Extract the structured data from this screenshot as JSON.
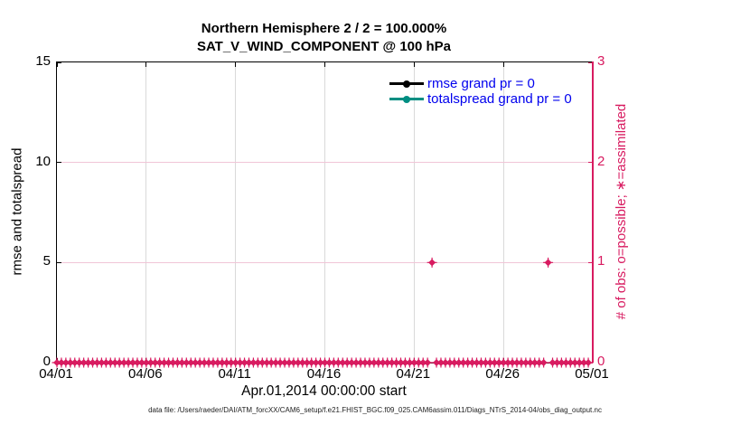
{
  "figure": {
    "background": "#ffffff",
    "caption": "data file: /Users/raeder/DAI/ATM_forcXX/CAM6_setup/f.e21.FHIST_BGC.f09_025.CAM6assim.011/Diags_NTrS_2014-04/obs_diag_output.nc"
  },
  "legend": {
    "text_color": "#0000ee",
    "items": [
      {
        "label": "rmse grand pr = 0",
        "color": "#000000"
      },
      {
        "label": "totalspread grand pr = 0",
        "color": "#008e82"
      }
    ]
  },
  "chart_data": {
    "type": "scatter",
    "title_line1": "Northern Hemisphere 2 / 2 = 100.000%",
    "title_line2": "SAT_V_WIND_COMPONENT @ 100 hPa",
    "x_axis": {
      "label": "Apr.01,2014 00:00:00 start",
      "tick_labels": [
        "04/01",
        "04/06",
        "04/11",
        "04/16",
        "04/21",
        "04/26",
        "05/01"
      ],
      "range_days": [
        0,
        30
      ],
      "color": "#000000"
    },
    "left_axis": {
      "label": "rmse and totalspread",
      "ticks": [
        0,
        5,
        10,
        15
      ],
      "range": [
        0,
        15
      ],
      "color": "#000000"
    },
    "right_axis": {
      "label": "# of obs: o=possible; ∗=assimilated",
      "ticks": [
        0,
        1,
        2,
        3
      ],
      "range": [
        0,
        3
      ],
      "color": "#d81b60"
    },
    "series": [
      {
        "name": "rmse grand pr = 0",
        "color": "#000000",
        "marker": "filled-circle",
        "values": []
      },
      {
        "name": "totalspread grand pr = 0",
        "color": "#008e82",
        "marker": "filled-circle",
        "values": []
      },
      {
        "name": "obs_count",
        "axis": "right",
        "color": "#d81b60",
        "marker": "diamond-asterisk",
        "start_day": 0,
        "end_day": 29.75,
        "interval_days": 0.25,
        "default_value": 0,
        "exceptions": [
          {
            "day": 21.0,
            "value": 1
          },
          {
            "day": 27.5,
            "value": 1
          }
        ]
      }
    ],
    "grid": {
      "vertical_color": "#d9d9d9",
      "horizontal_color": "#f1c6d7",
      "vertical_at_every_x_tick": true,
      "horizontal_at_right_ticks": [
        1,
        2
      ]
    }
  }
}
